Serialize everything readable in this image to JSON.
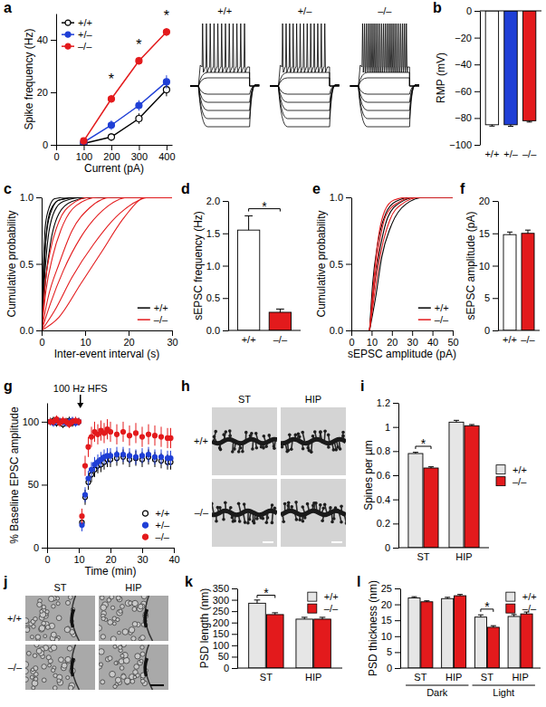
{
  "chart_data": [
    {
      "type": "line",
      "label": "a",
      "x_label": "Current (pA)",
      "y_label": "Spike frequency (Hz)",
      "x": [
        100,
        200,
        300,
        400
      ],
      "series": [
        {
          "name": "+/+",
          "color": "#000000",
          "marker": "open-circle",
          "line_style": "solid",
          "values": [
            0.5,
            3,
            10,
            21
          ],
          "errors": [
            0.5,
            1.5,
            2,
            2.5
          ]
        },
        {
          "name": "+/–",
          "color": "#1f3fd6",
          "marker": "circle",
          "line_style": "solid",
          "values": [
            1,
            7.5,
            15,
            24
          ],
          "errors": [
            0.8,
            1.8,
            2,
            2.5
          ]
        },
        {
          "name": "–/–",
          "color": "#e31a1c",
          "marker": "circle",
          "line_style": "solid",
          "values": [
            1.5,
            17.5,
            32,
            43
          ],
          "errors": [
            0.8,
            1.5,
            1.5,
            1.5
          ]
        }
      ],
      "xlim": [
        0,
        420
      ],
      "xticks": [
        0,
        100,
        200,
        300,
        400
      ],
      "ylim": [
        0,
        50
      ],
      "yticks": [
        0,
        20,
        40
      ],
      "legend": "top-left",
      "annotations": [
        {
          "text": "*",
          "x": 200,
          "y": 25
        },
        {
          "text": "*",
          "x": 300,
          "y": 38
        },
        {
          "text": "*",
          "x": 400,
          "y": 49
        }
      ],
      "trace_labels": [
        "+/+",
        "+/–",
        "–/–"
      ]
    },
    {
      "type": "bar",
      "label": "b",
      "y_label": "RMP (mV)",
      "categories": [
        "+/+",
        "+/–",
        "–/–"
      ],
      "values": [
        -85,
        -85,
        -82
      ],
      "errors": [
        1,
        1.2,
        1
      ],
      "colors": [
        "#ffffff",
        "#1f3fd6",
        "#e31a1c"
      ],
      "ylim": [
        -100,
        0
      ],
      "yticks": [
        {
          "value": -100,
          "label": "−100"
        },
        {
          "value": -80,
          "label": "−80"
        },
        {
          "value": -60,
          "label": "−60"
        },
        {
          "value": -40,
          "label": "−40"
        },
        {
          "value": -20,
          "label": "−20"
        },
        0
      ]
    },
    {
      "type": "line",
      "label": "c",
      "x_label": "Inter-event interval (s)",
      "y_label": "Cumulative probability",
      "series": [
        {
          "name": "+/+",
          "color": "#000000",
          "curves": [
            {
              "x": [
                0,
                0.5,
                1,
                2,
                4,
                8,
                30
              ],
              "values": [
                0,
                0.4,
                0.7,
                0.9,
                0.98,
                1,
                1
              ]
            },
            {
              "x": [
                0,
                0.8,
                1.5,
                3,
                5,
                10,
                30
              ],
              "values": [
                0,
                0.45,
                0.7,
                0.9,
                0.97,
                1,
                1
              ]
            },
            {
              "x": [
                0,
                0.4,
                0.9,
                1.8,
                3,
                6,
                30
              ],
              "values": [
                0,
                0.5,
                0.8,
                0.93,
                0.99,
                1,
                1
              ]
            },
            {
              "x": [
                0,
                1,
                2,
                4,
                7,
                12,
                30
              ],
              "values": [
                0,
                0.4,
                0.65,
                0.88,
                0.97,
                1,
                1
              ]
            },
            {
              "x": [
                0,
                0.6,
                1.2,
                2.5,
                4,
                9,
                30
              ],
              "values": [
                0,
                0.5,
                0.75,
                0.92,
                0.98,
                1,
                1
              ]
            }
          ]
        },
        {
          "name": "–/–",
          "color": "#e31a1c",
          "curves": [
            {
              "x": [
                0,
                2,
                5,
                9,
                14,
                20,
                30
              ],
              "values": [
                0,
                0.2,
                0.45,
                0.7,
                0.9,
                1,
                1
              ]
            },
            {
              "x": [
                0,
                3,
                7,
                12,
                18,
                25,
                30
              ],
              "values": [
                0,
                0.15,
                0.4,
                0.65,
                0.88,
                1,
                1
              ]
            },
            {
              "x": [
                0,
                1.5,
                4,
                7,
                11,
                16,
                30
              ],
              "values": [
                0,
                0.25,
                0.5,
                0.75,
                0.92,
                1,
                1
              ]
            },
            {
              "x": [
                0,
                1,
                2.5,
                5,
                8,
                13,
                30
              ],
              "values": [
                0,
                0.3,
                0.55,
                0.8,
                0.94,
                1,
                1
              ]
            },
            {
              "x": [
                0,
                4,
                9,
                14,
                19,
                24,
                30
              ],
              "values": [
                0,
                0.1,
                0.35,
                0.6,
                0.85,
                1,
                1
              ]
            },
            {
              "x": [
                0,
                0.8,
                2,
                4,
                7,
                11,
                30
              ],
              "values": [
                0,
                0.35,
                0.6,
                0.82,
                0.95,
                1,
                1
              ]
            }
          ]
        }
      ],
      "xlim": [
        0,
        30
      ],
      "xticks": [
        0,
        10,
        20,
        30
      ],
      "ylim": [
        0,
        1
      ],
      "yticks": [
        {
          "value": 0,
          "label": "0.0"
        },
        0.5,
        {
          "value": 1,
          "label": "1.0"
        }
      ],
      "legend": "bottom-right"
    },
    {
      "type": "bar",
      "label": "d",
      "y_label": "sEPSC frequency (Hz)",
      "categories": [
        "+/+",
        "–/–"
      ],
      "values": [
        1.55,
        0.28
      ],
      "errors": [
        0.22,
        0.05
      ],
      "colors": [
        "#ffffff",
        "#e31a1c"
      ],
      "ylim": [
        0,
        2
      ],
      "yticks": [
        {
          "value": 0,
          "label": "0.0"
        },
        0.5,
        {
          "value": 1,
          "label": "1.0"
        },
        1.5,
        {
          "value": 2,
          "label": "2.0"
        }
      ],
      "annotations": [
        {
          "text": "*",
          "y": 1.88
        }
      ]
    },
    {
      "type": "line",
      "label": "e",
      "x_label": "sEPSC amplitude (pA)",
      "y_label": "Cumulative probability",
      "series": [
        {
          "name": "+/+",
          "color": "#000000",
          "curves": [
            {
              "x": [
                9,
                11,
                14,
                18,
                24,
                32,
                50
              ],
              "values": [
                0,
                0.3,
                0.6,
                0.85,
                0.96,
                1,
                1
              ]
            },
            {
              "x": [
                9,
                10.5,
                13,
                17,
                22,
                30,
                50
              ],
              "values": [
                0,
                0.35,
                0.65,
                0.88,
                0.97,
                1,
                1
              ]
            },
            {
              "x": [
                9,
                12,
                15,
                20,
                27,
                36,
                50
              ],
              "values": [
                0,
                0.25,
                0.55,
                0.8,
                0.95,
                1,
                1
              ]
            }
          ]
        },
        {
          "name": "–/–",
          "color": "#e31a1c",
          "curves": [
            {
              "x": [
                9,
                11,
                13.5,
                17,
                23,
                31,
                50
              ],
              "values": [
                0,
                0.3,
                0.62,
                0.86,
                0.96,
                1,
                1
              ]
            },
            {
              "x": [
                9,
                11.5,
                14.5,
                19,
                25,
                34,
                50
              ],
              "values": [
                0,
                0.28,
                0.58,
                0.83,
                0.95,
                1,
                1
              ]
            },
            {
              "x": [
                9,
                10.8,
                13,
                16.5,
                21,
                28,
                50
              ],
              "values": [
                0,
                0.33,
                0.66,
                0.9,
                0.98,
                1,
                1
              ]
            }
          ]
        }
      ],
      "xlim": [
        0,
        50
      ],
      "xticks": [
        0,
        10,
        20,
        30,
        40,
        50
      ],
      "ylim": [
        0,
        1
      ],
      "yticks": [
        {
          "value": 0,
          "label": "0.0"
        },
        0.5,
        {
          "value": 1,
          "label": "1.0"
        }
      ],
      "legend": "bottom-right"
    },
    {
      "type": "bar",
      "label": "f",
      "y_label": "sEPSC amplitude (pA)",
      "categories": [
        "+/+",
        "–/–"
      ],
      "values": [
        14.8,
        15.0
      ],
      "errors": [
        0.4,
        0.5
      ],
      "colors": [
        "#ffffff",
        "#e31a1c"
      ],
      "ylim": [
        0,
        20
      ],
      "yticks": [
        0,
        5,
        10,
        15,
        20
      ]
    },
    {
      "type": "scatter",
      "label": "g",
      "x_label": "Time (min)",
      "y_label": "% Baseline EPSC amplitude",
      "x": [
        1,
        2,
        3,
        4,
        5,
        6,
        7,
        8,
        9,
        10,
        11,
        12,
        13,
        14,
        15,
        16,
        17,
        18,
        19,
        20,
        22,
        24,
        26,
        28,
        30,
        32,
        34,
        36,
        38,
        39
      ],
      "series": [
        {
          "name": "+/+",
          "color": "#000000",
          "marker": "open-circle",
          "line_style": "none",
          "values": [
            100,
            101,
            99,
            100,
            98,
            100,
            101,
            99,
            100,
            100,
            20,
            40,
            52,
            58,
            62,
            65,
            66,
            68,
            70,
            70,
            71,
            72,
            70,
            71,
            70,
            72,
            70,
            69,
            68,
            68
          ],
          "errors": [
            3,
            3,
            3,
            3,
            3,
            3,
            3,
            3,
            3,
            3,
            5,
            6,
            6,
            6,
            6,
            6,
            6,
            6,
            6,
            6,
            6,
            6,
            6,
            6,
            6,
            6,
            6,
            6,
            6,
            6
          ]
        },
        {
          "name": "+/–",
          "color": "#1f3fd6",
          "marker": "circle",
          "line_style": "none",
          "values": [
            100,
            99,
            101,
            100,
            100,
            99,
            100,
            101,
            99,
            100,
            18,
            42,
            55,
            62,
            66,
            68,
            70,
            72,
            73,
            73,
            74,
            74,
            73,
            72,
            73,
            74,
            72,
            72,
            71,
            71
          ],
          "errors": [
            3,
            3,
            3,
            3,
            3,
            3,
            3,
            3,
            3,
            3,
            5,
            6,
            6,
            6,
            6,
            6,
            6,
            6,
            6,
            6,
            6,
            6,
            6,
            6,
            6,
            6,
            6,
            6,
            6,
            6
          ]
        },
        {
          "name": "–/–",
          "color": "#e31a1c",
          "marker": "circle",
          "line_style": "none",
          "values": [
            100,
            100,
            102,
            99,
            101,
            100,
            98,
            100,
            101,
            100,
            25,
            65,
            80,
            88,
            92,
            90,
            93,
            91,
            94,
            92,
            90,
            92,
            89,
            91,
            88,
            90,
            89,
            88,
            87,
            87
          ],
          "errors": [
            3,
            3,
            3,
            3,
            3,
            3,
            3,
            3,
            3,
            3,
            6,
            8,
            8,
            8,
            8,
            8,
            8,
            8,
            8,
            8,
            8,
            8,
            8,
            8,
            8,
            8,
            8,
            8,
            8,
            8
          ]
        }
      ],
      "xlim": [
        0,
        40
      ],
      "xticks": [
        0,
        10,
        20,
        30,
        40
      ],
      "ylim": [
        0,
        115
      ],
      "yticks": [
        0,
        50,
        100
      ],
      "legend": "bottom-right",
      "annotations": [
        {
          "text": "100 Hz HFS",
          "x": 10.5
        }
      ]
    },
    {
      "type": "image",
      "label": "h",
      "columns": [
        "ST",
        "HIP"
      ],
      "rows": [
        "+/+",
        "–/–"
      ]
    },
    {
      "type": "bar",
      "label": "i",
      "y_label": "Spines per µm",
      "categories": [
        "ST",
        "HIP"
      ],
      "series": [
        {
          "name": "+/+",
          "color": "#e6e6e6",
          "values": [
            0.78,
            1.04
          ],
          "errors": [
            0.01,
            0.015
          ]
        },
        {
          "name": "–/–",
          "color": "#e31a1c",
          "values": [
            0.66,
            1.01
          ],
          "errors": [
            0.01,
            0.01
          ]
        }
      ],
      "ylim": [
        0,
        1.2
      ],
      "yticks": [
        0,
        0.2,
        0.4,
        0.6,
        0.8,
        1,
        1.2
      ],
      "legend": "right",
      "annotations": [
        {
          "text": "*",
          "category": 0,
          "y": 0.84
        }
      ]
    },
    {
      "type": "image",
      "label": "j",
      "columns": [
        "ST",
        "HIP"
      ],
      "rows": [
        "+/+",
        "–/–"
      ]
    },
    {
      "type": "bar",
      "label": "k",
      "y_label": "PSD length (nm)",
      "categories": [
        "ST",
        "HIP"
      ],
      "series": [
        {
          "name": "+/+",
          "color": "#e6e6e6",
          "values": [
            285,
            215
          ],
          "errors": [
            14,
            8
          ]
        },
        {
          "name": "–/–",
          "color": "#e31a1c",
          "values": [
            235,
            215
          ],
          "errors": [
            8,
            8
          ]
        }
      ],
      "ylim": [
        0,
        350
      ],
      "yticks": [
        0,
        50,
        100,
        150,
        200,
        250,
        300,
        350
      ],
      "legend": "top-right",
      "annotations": [
        {
          "text": "*",
          "category": 0,
          "y": 320
        }
      ]
    },
    {
      "type": "bar",
      "label": "l",
      "y_label": "PSD thickness (nm)",
      "categories": [
        "ST",
        "HIP",
        "ST",
        "HIP"
      ],
      "groups": [
        {
          "label": "Dark",
          "categories": [
            0,
            1
          ]
        },
        {
          "label": "Light",
          "categories": [
            2,
            3
          ]
        }
      ],
      "series": [
        {
          "name": "+/+",
          "color": "#e6e6e6",
          "values": [
            22,
            21.8,
            16,
            16.2
          ],
          "errors": [
            0.4,
            0.4,
            0.7,
            0.6
          ]
        },
        {
          "name": "–/–",
          "color": "#e31a1c",
          "values": [
            20.8,
            22.7,
            12.8,
            17
          ],
          "errors": [
            0.3,
            0.4,
            0.5,
            0.6
          ]
        }
      ],
      "ylim": [
        0,
        25
      ],
      "yticks": [
        0,
        5,
        10,
        15,
        20,
        25
      ],
      "legend": "top-right",
      "annotations": [
        {
          "text": "*",
          "category": 2,
          "y": 18.5
        }
      ]
    }
  ]
}
